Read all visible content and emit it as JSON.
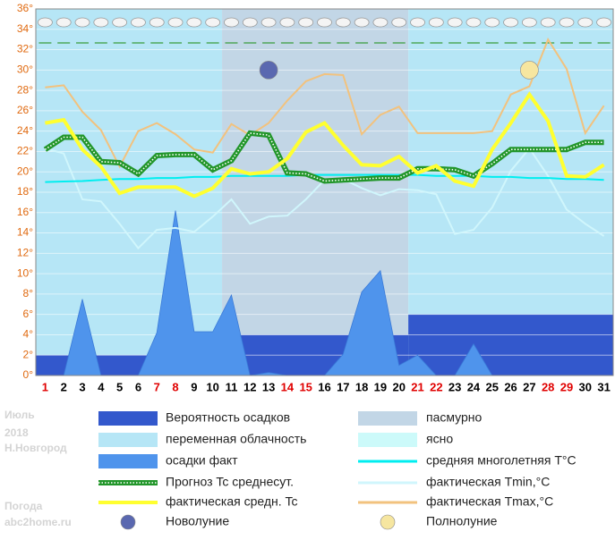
{
  "chart_data": {
    "type": "line",
    "x": [
      1,
      2,
      3,
      4,
      5,
      6,
      7,
      8,
      9,
      10,
      11,
      12,
      13,
      14,
      15,
      16,
      17,
      18,
      19,
      20,
      21,
      22,
      23,
      24,
      25,
      26,
      27,
      28,
      29,
      30,
      31
    ],
    "label_colors": [
      "#e00000",
      "#000000",
      "#000000",
      "#000000",
      "#000000",
      "#000000",
      "#e00000",
      "#e00000",
      "#000000",
      "#000000",
      "#000000",
      "#000000",
      "#000000",
      "#e00000",
      "#e00000",
      "#000000",
      "#000000",
      "#000000",
      "#000000",
      "#000000",
      "#e00000",
      "#e00000",
      "#000000",
      "#000000",
      "#000000",
      "#000000",
      "#000000",
      "#e00000",
      "#e00000",
      "#000000",
      "#000000"
    ],
    "xlim": [
      0.5,
      31.5
    ],
    "ylim": [
      0,
      36
    ],
    "yticks": [
      {
        "value": 0,
        "label": "0°"
      },
      {
        "value": 2,
        "label": "2°"
      },
      {
        "value": 4,
        "label": "4°"
      },
      {
        "value": 6,
        "label": "6°"
      },
      {
        "value": 8,
        "label": "8°"
      },
      {
        "value": 10,
        "label": "10°"
      },
      {
        "value": 12,
        "label": "12°"
      },
      {
        "value": 14,
        "label": "14°"
      },
      {
        "value": 16,
        "label": "16°"
      },
      {
        "value": 18,
        "label": "18°"
      },
      {
        "value": 20,
        "label": "20°"
      },
      {
        "value": 22,
        "label": "22°"
      },
      {
        "value": 24,
        "label": "24°"
      },
      {
        "value": 26,
        "label": "26°"
      },
      {
        "value": 28,
        "label": "28°"
      },
      {
        "value": 30,
        "label": "30°"
      },
      {
        "value": 32,
        "label": "32°"
      },
      {
        "value": 34,
        "label": "34°"
      },
      {
        "value": 36,
        "label": "36°"
      }
    ],
    "grid": true,
    "cloud_types": [
      {
        "name": "пасмурно",
        "color": "#c2d6e6"
      },
      {
        "name": "переменная облачность",
        "color": "#b6e6f6"
      },
      {
        "name": "ясно",
        "color": "#ccfafa"
      }
    ],
    "cloud_periods": [
      {
        "type": 1,
        "x": [
          0.5,
          10.5
        ]
      },
      {
        "type": 0,
        "x": [
          10.5,
          20.5
        ]
      },
      {
        "type": 1,
        "x": [
          20.5,
          31.5
        ]
      }
    ],
    "precip_probability": {
      "name": "Вероятность осадков",
      "color": "#3358cc",
      "x": [
        [
          0.5,
          10.5
        ],
        [
          10.5,
          20.5
        ],
        [
          20.5,
          31.5
        ]
      ],
      "values": [
        2,
        4,
        6
      ]
    },
    "series": [
      {
        "name": "осадки факт",
        "style": "area",
        "color": "#4f94ec",
        "values": [
          0,
          0,
          7.5,
          0,
          0,
          0,
          4.2,
          16.2,
          4.3,
          4.3,
          7.9,
          0,
          0.3,
          0,
          0,
          0,
          2.1,
          8.2,
          10.3,
          1.0,
          2.0,
          0,
          0,
          3.1,
          0,
          0,
          0,
          0,
          0,
          0,
          0
        ]
      },
      {
        "name": "фактическая Tmin,°C",
        "style": "line",
        "color": "#d0f6fc",
        "values": [
          22.3,
          21.8,
          17.3,
          17.1,
          14.9,
          12.5,
          14.3,
          14.5,
          14.1,
          15.6,
          17.3,
          14.9,
          15.6,
          15.7,
          17.3,
          19.2,
          19.3,
          18.4,
          17.7,
          18.3,
          18.2,
          17.8,
          13.9,
          14.3,
          16.5,
          20.1,
          22.3,
          19.6,
          16.3,
          14.9,
          13.7
        ]
      },
      {
        "name": "фактическая Tmax,°C",
        "style": "line",
        "color": "#f2c27e",
        "values": [
          28.3,
          28.5,
          25.9,
          24.1,
          20.5,
          24.0,
          24.8,
          23.7,
          22.2,
          21.9,
          24.7,
          23.6,
          24.8,
          27.0,
          28.9,
          29.6,
          29.5,
          23.7,
          25.6,
          26.4,
          23.8,
          23.8,
          23.8,
          23.8,
          24.0,
          27.6,
          28.4,
          33.0,
          30.1,
          23.8,
          26.5
        ]
      },
      {
        "name": "средняя многолетняя T°C",
        "style": "line",
        "color": "#00eef0",
        "values": [
          19.0,
          19.05,
          19.1,
          19.2,
          19.3,
          19.3,
          19.4,
          19.4,
          19.5,
          19.5,
          19.6,
          19.6,
          19.6,
          19.6,
          19.7,
          19.7,
          19.7,
          19.7,
          19.7,
          19.7,
          19.7,
          19.6,
          19.6,
          19.6,
          19.5,
          19.5,
          19.4,
          19.4,
          19.3,
          19.3,
          19.2
        ]
      },
      {
        "name": "Прогноз Tc среднесут.",
        "style": "dotted",
        "color": "#22962a",
        "values": [
          22.2,
          23.4,
          23.4,
          21.0,
          20.9,
          19.8,
          21.6,
          21.7,
          21.7,
          20.2,
          21.1,
          23.8,
          23.6,
          19.9,
          19.8,
          19.1,
          19.2,
          19.3,
          19.4,
          19.4,
          20.3,
          20.3,
          20.2,
          19.6,
          20.8,
          22.2,
          22.2,
          22.2,
          22.2,
          22.9,
          22.9
        ]
      },
      {
        "name": "фактическая средн. Tc",
        "style": "line",
        "color": "#ffff30",
        "values": [
          24.8,
          25.1,
          22.2,
          20.5,
          17.9,
          18.5,
          18.5,
          18.5,
          17.6,
          18.4,
          20.3,
          19.8,
          20.0,
          21.3,
          23.9,
          24.8,
          22.6,
          20.7,
          20.6,
          21.5,
          19.9,
          20.6,
          19.1,
          18.6,
          22.2,
          24.8,
          27.6,
          25.0,
          19.6,
          19.5,
          20.7
        ]
      }
    ],
    "markers": [
      {
        "name": "Новолуние",
        "color": "#5a68b0",
        "x": 13,
        "y": 30
      },
      {
        "name": "Полнолуние",
        "color": "#f6e6a0",
        "x": 27,
        "y": 30
      }
    ],
    "side_text": [
      "Июль",
      "2018",
      "Н.Новгород",
      "Погода",
      "abc2home.ru"
    ]
  }
}
